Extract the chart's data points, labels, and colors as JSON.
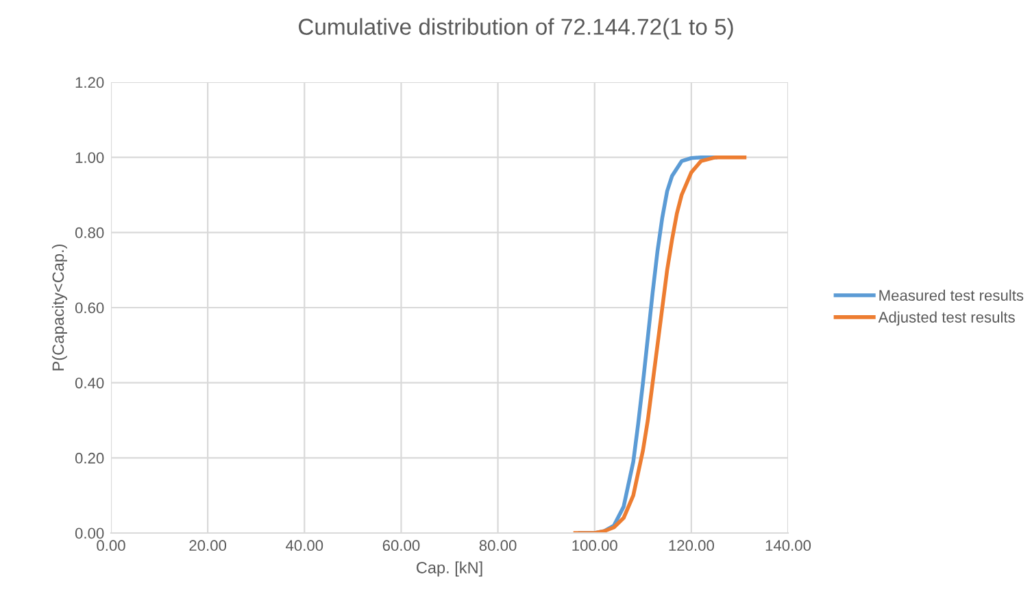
{
  "chart_data": {
    "type": "line",
    "title": "Cumulative distribution of 72.144.72(1 to 5)",
    "xlabel": "Cap. [kN]",
    "ylabel": "P(Capacity<Cap.)",
    "xlim": [
      0,
      140
    ],
    "xticks": [
      {
        "value": 0,
        "label": "0.00"
      },
      {
        "value": 20,
        "label": "20.00"
      },
      {
        "value": 40,
        "label": "40.00"
      },
      {
        "value": 60,
        "label": "60.00"
      },
      {
        "value": 80,
        "label": "80.00"
      },
      {
        "value": 100,
        "label": "100.00"
      },
      {
        "value": 120,
        "label": "120.00"
      },
      {
        "value": 140,
        "label": "140.00"
      }
    ],
    "ylim": [
      0,
      1.2
    ],
    "yticks": [
      {
        "value": 0,
        "label": "0.00"
      },
      {
        "value": 0.2,
        "label": "0.20"
      },
      {
        "value": 0.4,
        "label": "0.40"
      },
      {
        "value": 0.6,
        "label": "0.60"
      },
      {
        "value": 0.8,
        "label": "0.80"
      },
      {
        "value": 1,
        "label": "1.00"
      },
      {
        "value": 1.2,
        "label": "1.20"
      }
    ],
    "grid": true,
    "legend": "right",
    "marker": "none",
    "line_style": "solid",
    "series": [
      {
        "name": "Measured test results",
        "color": "#5b9bd5",
        "x": [
          97,
          100,
          102,
          104,
          106,
          108,
          109,
          110,
          111,
          112,
          113,
          114,
          115,
          116,
          118,
          120,
          122,
          125
        ],
        "values": [
          0,
          0,
          0.005,
          0.02,
          0.07,
          0.19,
          0.29,
          0.4,
          0.52,
          0.64,
          0.75,
          0.84,
          0.91,
          0.95,
          0.99,
          0.998,
          1,
          1
        ]
      },
      {
        "name": "Adjusted test results",
        "color": "#ed7d31",
        "x": [
          96,
          100,
          102,
          104,
          106,
          108,
          110,
          111,
          112,
          113,
          114,
          115,
          116,
          117,
          118,
          120,
          122,
          125,
          128,
          131
        ],
        "values": [
          0,
          0,
          0.005,
          0.015,
          0.04,
          0.1,
          0.22,
          0.3,
          0.4,
          0.5,
          0.6,
          0.7,
          0.78,
          0.85,
          0.9,
          0.96,
          0.99,
          1,
          1,
          1
        ]
      }
    ]
  }
}
